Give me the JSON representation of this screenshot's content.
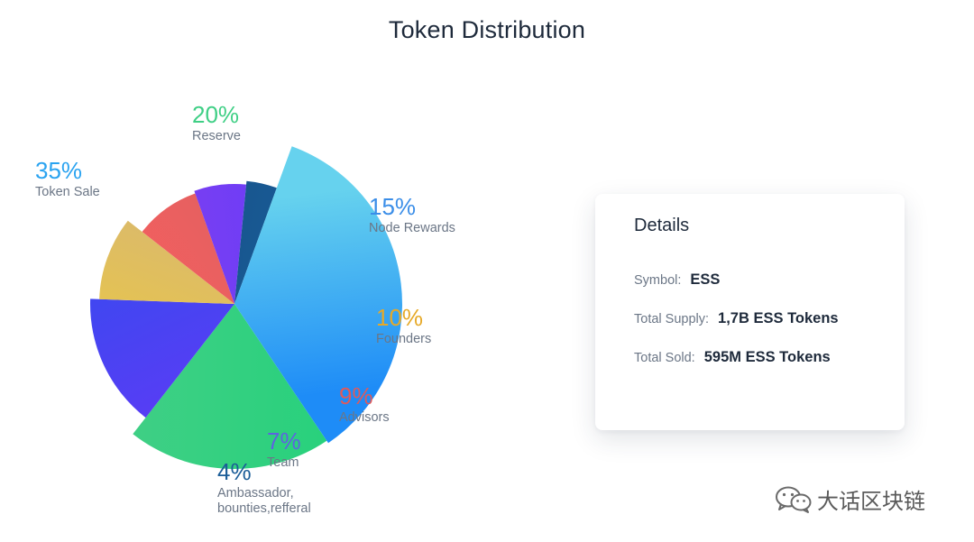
{
  "title": "Token Distribution",
  "chart_data": {
    "type": "pie",
    "title": "Token Distribution",
    "slices": [
      {
        "name": "Reserve",
        "value": 20,
        "label": "20%",
        "color_start": "#3fcf85",
        "color_end": "#28d17c"
      },
      {
        "name": "Node Rewards",
        "value": 15,
        "label": "15%",
        "color_start": "#3d48f0",
        "color_end": "#5a3cf5"
      },
      {
        "name": "Founders",
        "value": 10,
        "label": "10%",
        "color_start": "#d8b772",
        "color_end": "#e8c64a"
      },
      {
        "name": "Advisors",
        "value": 9,
        "label": "9%",
        "color_start": "#e06060",
        "color_end": "#f55f5f"
      },
      {
        "name": "Team",
        "value": 7,
        "label": "7%",
        "color_start": "#6a3cf8",
        "color_end": "#7d3ff0"
      },
      {
        "name": "Ambassador, bounties,refferal",
        "value": 4,
        "label": "4%",
        "color_start": "#1b5d98",
        "color_end": "#15528a"
      },
      {
        "name": "Token Sale",
        "value": 35,
        "label": "35%",
        "color_start": "#1e8cf7",
        "color_end": "#66d2ee"
      }
    ]
  },
  "labels": {
    "reserve": {
      "pct": "20%",
      "name": "Reserve",
      "color": "#3fcf85"
    },
    "node_rewards": {
      "pct": "15%",
      "name": "Node Rewards",
      "color": "#3b8ee8"
    },
    "founders": {
      "pct": "10%",
      "name": "Founders",
      "color": "#e6a928"
    },
    "advisors": {
      "pct": "9%",
      "name": "Advisors",
      "color": "#e05a5a"
    },
    "team": {
      "pct": "7%",
      "name": "Team",
      "color": "#5e63e0"
    },
    "ambassador": {
      "pct": "4%",
      "name_line1": "Ambassador,",
      "name_line2": "bounties,refferal",
      "color": "#1b5d98"
    },
    "token_sale": {
      "pct": "35%",
      "name": "Token Sale",
      "color": "#2aa3f0"
    }
  },
  "details": {
    "title": "Details",
    "symbol_label": "Symbol:",
    "symbol_value": "ESS",
    "supply_label": "Total Supply:",
    "supply_value": "1,7B ESS Tokens",
    "sold_label": "Total Sold:",
    "sold_value": "595M ESS Tokens"
  },
  "watermark": {
    "text": "大话区块链",
    "icon": "wechat-icon"
  }
}
